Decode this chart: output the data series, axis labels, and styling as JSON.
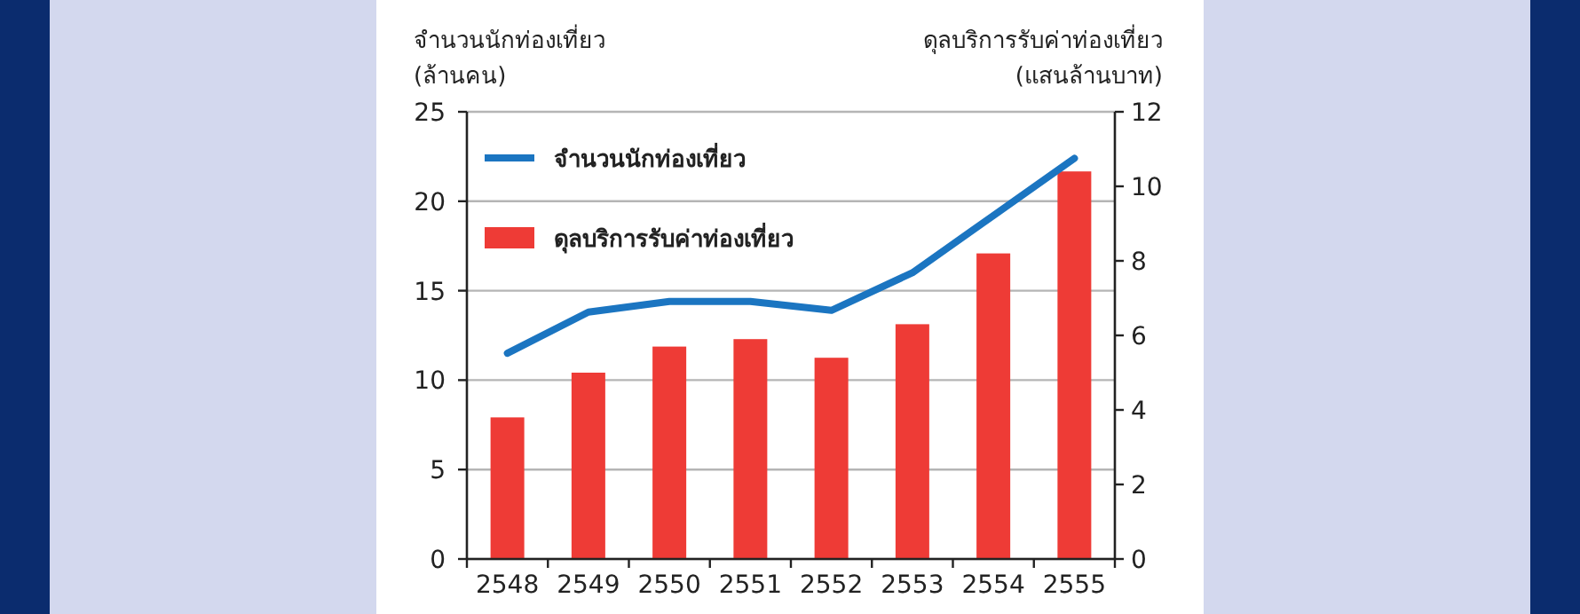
{
  "chart_data": {
    "type": "bar",
    "categories": [
      "2548",
      "2549",
      "2550",
      "2551",
      "2552",
      "2553",
      "2554",
      "2555"
    ],
    "ylabel": "จำนวนนักท่องเที่ยว (ล้านคน)",
    "y2label": "ดุลบริการรับค่าท่องเที่ยว (แสนล้านบาท)",
    "ylim": [
      0,
      25
    ],
    "yticks": [
      0,
      5,
      10,
      15,
      20,
      25
    ],
    "y2lim": [
      0,
      12
    ],
    "y2ticks": [
      0,
      2,
      4,
      6,
      8,
      10,
      12
    ],
    "grid": "y",
    "legend": "top left",
    "series": [
      {
        "name": "จำนวนนักท่องเที่ยว",
        "type": "line",
        "axis": "y",
        "color": "#1b75c1",
        "values": [
          11.5,
          13.8,
          14.4,
          14.4,
          13.9,
          16.0,
          19.2,
          22.4
        ]
      },
      {
        "name": "ดุลบริการรับค่าท่องเที่ยว",
        "axis": "y2",
        "color": "#ee3b36",
        "values": [
          3.8,
          5.0,
          5.7,
          5.9,
          5.4,
          6.3,
          8.2,
          10.4
        ]
      }
    ]
  }
}
